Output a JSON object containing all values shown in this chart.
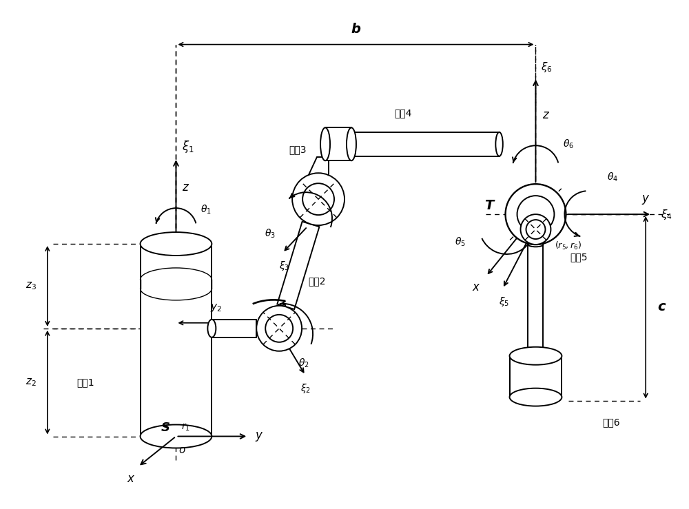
{
  "bg_color": "#ffffff",
  "fg_color": "#000000",
  "figsize": [
    10.0,
    7.39
  ],
  "dpi": 100,
  "xlim": [
    0,
    10
  ],
  "ylim": [
    0,
    7.39
  ]
}
